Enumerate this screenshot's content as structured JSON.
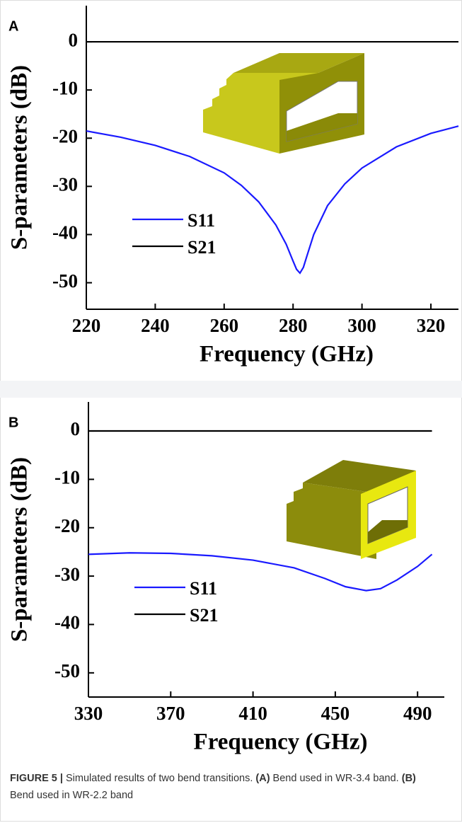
{
  "chart_data": [
    {
      "type": "line",
      "panel": "A",
      "xlabel": "Frequency (GHz)",
      "ylabel": "S-parameters (dB)",
      "x": [
        220,
        230,
        240,
        250,
        260,
        265,
        270,
        275,
        278,
        280,
        281,
        282,
        283,
        284,
        286,
        290,
        295,
        300,
        310,
        320,
        328
      ],
      "series": [
        {
          "name": "S11",
          "color": "#1a1aff",
          "values": [
            -18.5,
            -19.8,
            -21.5,
            -23.8,
            -27.2,
            -29.8,
            -33.2,
            -38,
            -42,
            -45.5,
            -47.2,
            -48,
            -46.8,
            -44.5,
            -40,
            -34,
            -29.5,
            -26.2,
            -21.8,
            -19,
            -17.5
          ]
        },
        {
          "name": "S21",
          "color": "#000000",
          "values": [
            0,
            0,
            0,
            0,
            0,
            0,
            0,
            0,
            0,
            0,
            0,
            0,
            0,
            0,
            0,
            0,
            0,
            0,
            0,
            0,
            0
          ]
        }
      ],
      "xlim": [
        220,
        328
      ],
      "xticks": [
        220,
        240,
        260,
        280,
        300,
        320
      ],
      "ylim": [
        -55.5,
        7.5
      ],
      "yticks": [
        0,
        -10,
        -20,
        -30,
        -40,
        -50
      ],
      "legend": "lower left"
    },
    {
      "type": "line",
      "panel": "B",
      "xlabel": "Frequency (GHz)",
      "ylabel": "S-parameters (dB)",
      "x": [
        330,
        350,
        370,
        390,
        410,
        430,
        445,
        455,
        465,
        472,
        480,
        490,
        497
      ],
      "series": [
        {
          "name": "S11",
          "color": "#1a1aff",
          "values": [
            -25.5,
            -25.2,
            -25.3,
            -25.8,
            -26.7,
            -28.3,
            -30.5,
            -32.2,
            -33,
            -32.6,
            -30.8,
            -28,
            -25.5
          ]
        },
        {
          "name": "S21",
          "color": "#000000",
          "values": [
            0,
            0,
            0,
            0,
            0,
            0,
            0,
            0,
            0,
            0,
            0,
            0,
            0
          ]
        }
      ],
      "xlim": [
        330,
        503
      ],
      "xticks": [
        330,
        370,
        410,
        450,
        490
      ],
      "ylim": [
        -55,
        6
      ],
      "yticks": [
        0,
        -10,
        -20,
        -30,
        -40,
        -50
      ],
      "legend": "lower left"
    }
  ],
  "caption": [
    {
      "text": "FIGURE 5 |",
      "bold": true
    },
    {
      "text": " Simulated results of two bend transitions. ",
      "bold": false
    },
    {
      "text": "(A)",
      "bold": true
    },
    {
      "text": " Bend used in WR-3.4 band. ",
      "bold": false
    },
    {
      "text": "(B)",
      "bold": true
    },
    {
      "text": " Bend used in WR-2.2 band",
      "bold": false
    }
  ]
}
